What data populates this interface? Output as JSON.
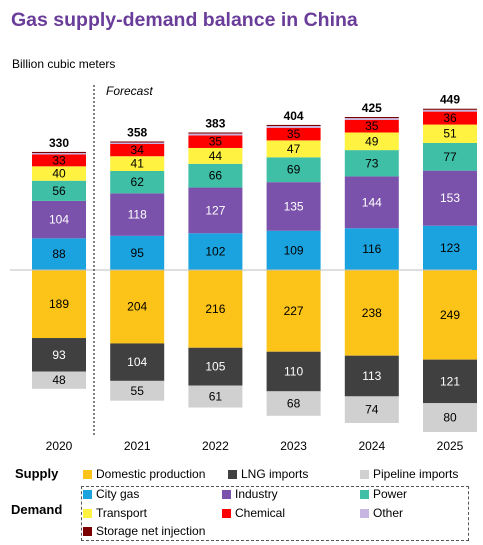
{
  "title": "Gas supply-demand balance in China",
  "units_label": "Billion cubic meters",
  "forecast_label": "Forecast",
  "legend": {
    "supply_label": "Supply",
    "demand_label": "Demand",
    "supply_items": [
      {
        "name": "Domestic production",
        "color": "#fcc419"
      },
      {
        "name": "LNG imports",
        "color": "#404040"
      },
      {
        "name": "Pipeline imports",
        "color": "#d0d0d0"
      }
    ],
    "demand_items": [
      {
        "name": "City gas",
        "color": "#1ba3e0"
      },
      {
        "name": "Industry",
        "color": "#7b52ab"
      },
      {
        "name": "Power",
        "color": "#3fbfa6"
      },
      {
        "name": "Transport",
        "color": "#fff240"
      },
      {
        "name": "Chemical",
        "color": "#ff0000"
      },
      {
        "name": "Other",
        "color": "#c8b6e2"
      },
      {
        "name": "Storage net injection",
        "color": "#7b0000"
      }
    ]
  },
  "chart_data": {
    "type": "bar",
    "stacked": true,
    "categories": [
      "2020",
      "2021",
      "2022",
      "2023",
      "2024",
      "2025"
    ],
    "demand_totals": [
      330,
      358,
      383,
      404,
      425,
      449
    ],
    "demand_series": [
      {
        "name": "City gas",
        "color": "#1ba3e0",
        "values": [
          88,
          95,
          102,
          109,
          116,
          123
        ]
      },
      {
        "name": "Industry",
        "color": "#7b52ab",
        "values": [
          104,
          118,
          127,
          135,
          144,
          153
        ]
      },
      {
        "name": "Power",
        "color": "#3fbfa6",
        "values": [
          56,
          62,
          66,
          69,
          73,
          77
        ]
      },
      {
        "name": "Transport",
        "color": "#fff240",
        "values": [
          40,
          41,
          44,
          47,
          49,
          51
        ]
      },
      {
        "name": "Chemical",
        "color": "#ff0000",
        "values": [
          33,
          34,
          35,
          35,
          35,
          36
        ]
      },
      {
        "name": "Other",
        "color": "#c8b6e2",
        "values": [
          4,
          4,
          5,
          5,
          5,
          5
        ]
      },
      {
        "name": "Storage net injection",
        "color": "#7b0000",
        "values": [
          3,
          3,
          3,
          3,
          3,
          3
        ]
      }
    ],
    "supply_series": [
      {
        "name": "Domestic production",
        "color": "#fcc419",
        "values": [
          189,
          204,
          216,
          227,
          238,
          249
        ]
      },
      {
        "name": "LNG imports",
        "color": "#404040",
        "values": [
          93,
          104,
          105,
          110,
          113,
          121
        ]
      },
      {
        "name": "Pipeline imports",
        "color": "#d0d0d0",
        "values": [
          48,
          55,
          61,
          68,
          74,
          80
        ]
      }
    ],
    "forecast_start": "2021"
  }
}
